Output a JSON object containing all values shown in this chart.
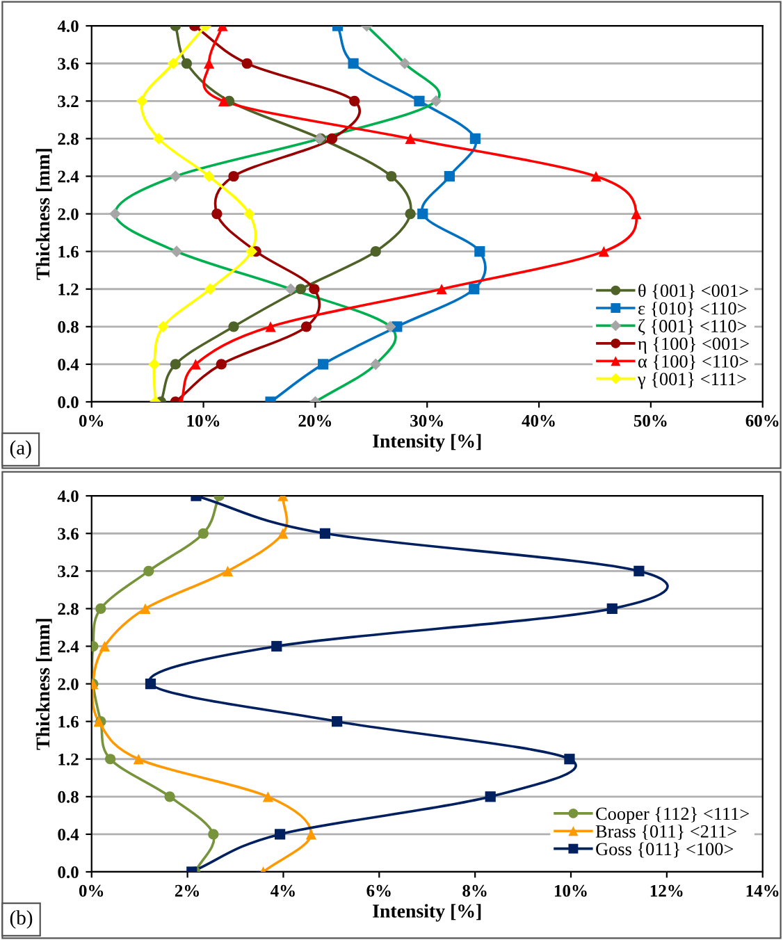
{
  "chart_data": [
    {
      "type": "line",
      "xlabel": "Intensity [%]",
      "ylabel": "Thickness [mm]",
      "annotations": [
        "(a)"
      ],
      "xlim": [
        0,
        60
      ],
      "xticks": [
        {
          "value": 0,
          "label": "0%"
        },
        {
          "value": 10,
          "label": "10%"
        },
        {
          "value": 20,
          "label": "20%"
        },
        {
          "value": 30,
          "label": "30%"
        },
        {
          "value": 40,
          "label": "40%"
        },
        {
          "value": 50,
          "label": "50%"
        },
        {
          "value": 60,
          "label": "60%"
        }
      ],
      "ylim": [
        0,
        4.0
      ],
      "yticks": [
        {
          "value": 0,
          "label": "0.0"
        },
        {
          "value": 0.4,
          "label": "0.4"
        },
        {
          "value": 0.8,
          "label": "0.8"
        },
        {
          "value": 1.2,
          "label": "1.2"
        },
        {
          "value": 1.6,
          "label": "1.6"
        },
        {
          "value": 2.0,
          "label": "2.0"
        },
        {
          "value": 2.4,
          "label": "2.4"
        },
        {
          "value": 2.8,
          "label": "2.8"
        },
        {
          "value": 3.2,
          "label": "3.2"
        },
        {
          "value": 3.6,
          "label": "3.6"
        },
        {
          "value": 4.0,
          "label": "4.0"
        }
      ],
      "grid": "y",
      "legend": "bottom right",
      "series": [
        {
          "name": "θ {001} <001>",
          "color": "#4f6228",
          "marker": "circle",
          "x": [
            6.2,
            7.5,
            12.7,
            18.7,
            25.4,
            28.5,
            26.8,
            20.5,
            12.3,
            8.5,
            7.5
          ],
          "values": [
            0,
            0.4,
            0.8,
            1.2,
            1.6,
            2.0,
            2.4,
            2.8,
            3.2,
            3.6,
            4.0
          ]
        },
        {
          "name": "ε {010} <110>",
          "color": "#0070c0",
          "marker": "square",
          "x": [
            16.0,
            20.7,
            27.3,
            34.2,
            34.7,
            29.6,
            32.0,
            34.3,
            29.3,
            23.4,
            22.0
          ],
          "values": [
            0,
            0.4,
            0.8,
            1.2,
            1.6,
            2.0,
            2.4,
            2.8,
            3.2,
            3.6,
            4.0
          ]
        },
        {
          "name": "ζ {001} <110>",
          "color": "#00b050",
          "colors": [
            "#a6a6a6",
            "#a6a6a6",
            "#a6a6a6",
            "#a6a6a6",
            "#a6a6a6",
            "#a6a6a6",
            "#a6a6a6",
            "#a6a6a6",
            "#a6a6a6",
            "#a6a6a6",
            "#a6a6a6"
          ],
          "marker": "diamond",
          "x": [
            20.0,
            25.4,
            26.7,
            17.8,
            7.6,
            2.1,
            7.5,
            20.4,
            30.8,
            28.0,
            24.6
          ],
          "values": [
            0,
            0.4,
            0.8,
            1.2,
            1.6,
            2.0,
            2.4,
            2.8,
            3.2,
            3.6,
            4.0
          ]
        },
        {
          "name": "η {100} <001>",
          "color": "#990000",
          "marker": "circle",
          "x": [
            7.5,
            11.6,
            19.2,
            19.9,
            14.7,
            11.2,
            12.7,
            21.5,
            23.5,
            13.9,
            9.2
          ],
          "values": [
            0,
            0.4,
            0.8,
            1.2,
            1.6,
            2.0,
            2.4,
            2.8,
            3.2,
            3.6,
            4.0
          ]
        },
        {
          "name": "α {100} <110>",
          "color": "#ff0000",
          "marker": "triangle",
          "x": [
            8.0,
            9.3,
            16.0,
            31.3,
            45.8,
            48.7,
            45.1,
            28.5,
            11.8,
            10.5,
            11.7
          ],
          "values": [
            0,
            0.4,
            0.8,
            1.2,
            1.6,
            2.0,
            2.4,
            2.8,
            3.2,
            3.6,
            4.0
          ]
        },
        {
          "name": "γ {001} <111>",
          "color": "#ffff00",
          "marker": "diamond",
          "x": [
            5.7,
            5.6,
            6.4,
            10.6,
            14.3,
            14.1,
            10.5,
            6.0,
            4.5,
            7.3,
            10.2
          ],
          "values": [
            0,
            0.4,
            0.8,
            1.2,
            1.6,
            2.0,
            2.4,
            2.8,
            3.2,
            3.6,
            4.0
          ]
        }
      ]
    },
    {
      "type": "line",
      "xlabel": "Intensity [%]",
      "ylabel": "Thickness [mm]",
      "annotations": [
        "(b)"
      ],
      "xlim": [
        0,
        14
      ],
      "xticks": [
        {
          "value": 0,
          "label": "0%"
        },
        {
          "value": 2,
          "label": "2%"
        },
        {
          "value": 4,
          "label": "4%"
        },
        {
          "value": 6,
          "label": "6%"
        },
        {
          "value": 8,
          "label": "8%"
        },
        {
          "value": 10,
          "label": "10%"
        },
        {
          "value": 12,
          "label": "12%"
        },
        {
          "value": 14,
          "label": "14%"
        }
      ],
      "ylim": [
        0,
        4.0
      ],
      "yticks": [
        {
          "value": 0,
          "label": "0.0"
        },
        {
          "value": 0.4,
          "label": "0.4"
        },
        {
          "value": 0.8,
          "label": "0.8"
        },
        {
          "value": 1.2,
          "label": "1.2"
        },
        {
          "value": 1.6,
          "label": "1.6"
        },
        {
          "value": 2.0,
          "label": "2.0"
        },
        {
          "value": 2.4,
          "label": "2.4"
        },
        {
          "value": 2.8,
          "label": "2.8"
        },
        {
          "value": 3.2,
          "label": "3.2"
        },
        {
          "value": 3.6,
          "label": "3.6"
        },
        {
          "value": 4.0,
          "label": "4.0"
        }
      ],
      "grid": "y",
      "legend": "bottom right",
      "series": [
        {
          "name": "Cooper {112} <111>",
          "color": "#77933c",
          "marker": "circle",
          "x": [
            2.16,
            2.54,
            1.63,
            0.39,
            0.19,
            0.03,
            0.03,
            0.19,
            1.19,
            2.33,
            2.66
          ],
          "values": [
            0,
            0.4,
            0.8,
            1.2,
            1.6,
            2.0,
            2.4,
            2.8,
            3.2,
            3.6,
            4.0
          ]
        },
        {
          "name": "Brass {011} <211>",
          "color": "#ff9900",
          "marker": "triangle",
          "x": [
            3.58,
            4.58,
            3.68,
            0.98,
            0.15,
            0.03,
            0.27,
            1.12,
            2.84,
            3.99,
            3.99
          ],
          "values": [
            0,
            0.4,
            0.8,
            1.2,
            1.6,
            2.0,
            2.4,
            2.8,
            3.2,
            3.6,
            4.0
          ]
        },
        {
          "name": "Goss {011} <100>",
          "color": "#002060",
          "marker": "square",
          "x": [
            2.09,
            3.93,
            8.32,
            9.97,
            5.12,
            1.23,
            3.86,
            10.86,
            11.42,
            4.87,
            2.18
          ],
          "values": [
            0,
            0.4,
            0.8,
            1.2,
            1.6,
            2.0,
            2.4,
            2.8,
            3.2,
            3.6,
            4.0
          ]
        }
      ]
    }
  ]
}
